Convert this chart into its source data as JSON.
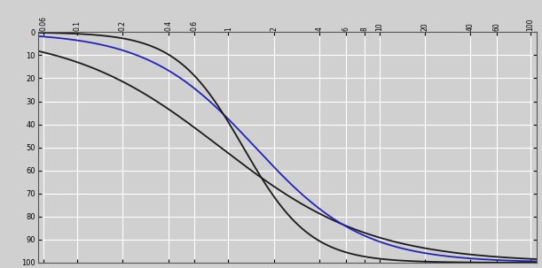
{
  "y_ticks": [
    0,
    10,
    20,
    30,
    40,
    50,
    60,
    70,
    80,
    90,
    100
  ],
  "background_color": "#d0d0d0",
  "grid_color": "#ffffff",
  "curve1_color": "#1a1a1a",
  "curve2_color": "#2222bb",
  "linewidth": 1.3,
  "x_tick_positions": [
    0.06,
    0.1,
    0.2,
    0.4,
    0.6,
    1,
    2,
    4,
    6,
    8,
    10,
    20,
    40,
    60,
    100
  ],
  "x_tick_labels": [
    "0.06",
    "0.1",
    "0.2",
    "0.4",
    "0.6",
    "1",
    "2",
    "4",
    "6",
    "8",
    "10",
    "20",
    "40",
    "60",
    "100"
  ],
  "xlim_min": 0.055,
  "xlim_max": 110,
  "curve1_x0": -0.05,
  "curve1_k": 2.0,
  "curve2_x0": 0.18,
  "curve2_k": 2.8,
  "curve3_x0": 0.1,
  "curve3_k": 4.5
}
